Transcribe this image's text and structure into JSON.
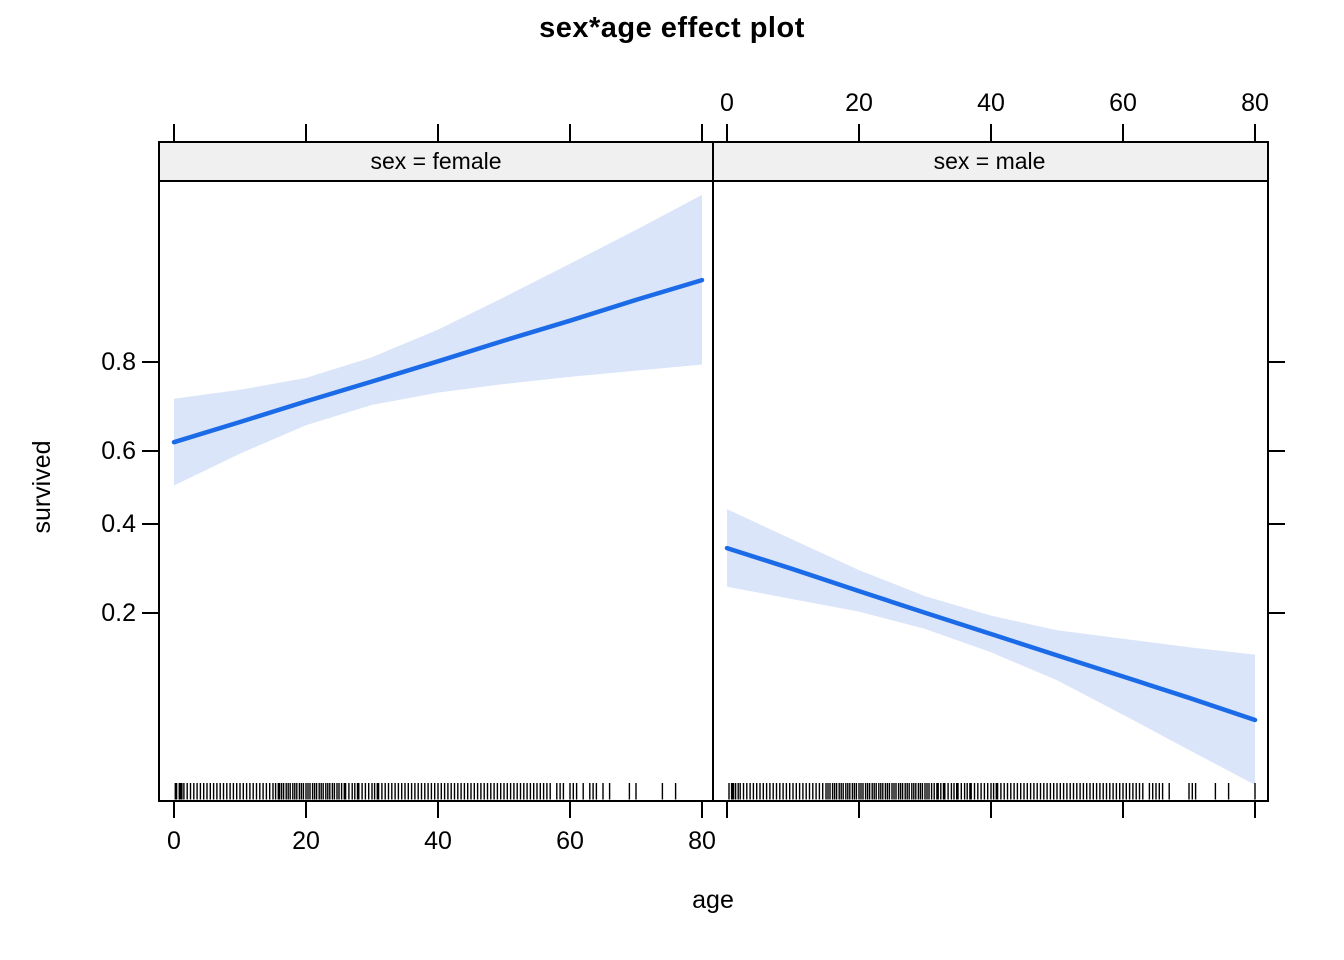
{
  "title": "sex*age effect plot",
  "chart_data": {
    "type": "line",
    "title": "sex*age effect plot",
    "xlabel": "age",
    "ylabel": "survived",
    "x_ticks": [
      0,
      20,
      40,
      60,
      80
    ],
    "y_ticks": [
      0.2,
      0.4,
      0.6,
      0.8
    ],
    "y_scale": "logit",
    "xlim": [
      -2.1,
      81.8
    ],
    "ylim": [
      0.03,
      0.97
    ],
    "grid": false,
    "legend": "none",
    "colors": {
      "line": "#1b6be8",
      "band": "#dbe5f9",
      "strip_bg": "#f0f0f0",
      "border": "#000000",
      "rug": "#000000"
    },
    "panels": [
      {
        "strip_label": "sex = female",
        "x_axis_labels": "bottom",
        "fit": {
          "ages": [
            0,
            10,
            20,
            30,
            40,
            50,
            60,
            70,
            80
          ],
          "probs": [
            0.622,
            0.673,
            0.721,
            0.763,
            0.801,
            0.835,
            0.863,
            0.888,
            0.908
          ]
        },
        "band": {
          "ages": [
            0,
            10,
            20,
            30,
            40,
            50,
            60,
            70,
            80
          ],
          "upper": [
            0.727,
            0.746,
            0.77,
            0.808,
            0.851,
            0.891,
            0.922,
            0.945,
            0.962
          ],
          "lower": [
            0.505,
            0.592,
            0.665,
            0.713,
            0.74,
            0.758,
            0.772,
            0.784,
            0.795
          ]
        },
        "rug_ages": [
          0.2,
          0.4,
          0.8,
          0.9,
          1,
          1.2,
          1.5,
          2,
          2.5,
          3,
          3.5,
          4,
          4.5,
          5,
          5.5,
          6,
          6.5,
          7,
          7.5,
          8,
          8.5,
          9,
          9.5,
          10,
          10.5,
          11,
          11.5,
          12,
          12.5,
          13,
          13.5,
          14,
          14.5,
          15,
          15.4,
          15.8,
          16,
          16.3,
          16.6,
          17,
          17.3,
          17.6,
          18,
          18.3,
          18.6,
          19,
          19.3,
          19.6,
          20,
          20.3,
          20.6,
          21,
          21.3,
          21.6,
          22,
          22.3,
          22.6,
          23,
          23.3,
          23.6,
          24,
          24.3,
          24.7,
          25,
          25.4,
          25.8,
          26,
          26.5,
          27,
          27.4,
          27.8,
          28,
          28.5,
          29,
          29.5,
          30,
          30.4,
          30.8,
          31,
          31.5,
          32,
          32.5,
          33,
          33.5,
          34,
          34.5,
          35,
          35.5,
          36,
          36.5,
          37,
          37.5,
          38,
          38.5,
          39,
          39.5,
          40,
          40.5,
          41,
          41.5,
          42,
          42.5,
          43,
          43.5,
          44,
          44.5,
          45,
          45.5,
          46,
          46.5,
          47,
          47.5,
          48,
          48.5,
          49,
          49.5,
          50,
          50.5,
          51,
          51.5,
          52,
          52.5,
          53,
          53.5,
          54,
          54.5,
          55,
          55.5,
          56,
          56.5,
          57,
          58,
          58.5,
          59,
          60,
          60.5,
          61,
          62,
          63,
          63.5,
          64,
          65,
          66,
          69,
          70,
          74,
          76
        ]
      },
      {
        "strip_label": "sex = male",
        "x_axis_labels": "top",
        "fit": {
          "ages": [
            0,
            10,
            20,
            30,
            40,
            50,
            60,
            70,
            80
          ],
          "probs": [
            0.338,
            0.288,
            0.241,
            0.2,
            0.165,
            0.135,
            0.11,
            0.089,
            0.071
          ]
        },
        "band": {
          "ages": [
            0,
            10,
            20,
            30,
            40,
            50,
            60,
            70,
            80
          ],
          "upper": [
            0.44,
            0.359,
            0.286,
            0.231,
            0.195,
            0.171,
            0.158,
            0.146,
            0.136
          ],
          "lower": [
            0.25,
            0.225,
            0.202,
            0.173,
            0.139,
            0.106,
            0.075,
            0.052,
            0.036
          ]
        },
        "rug_ages": [
          0.3,
          0.7,
          0.9,
          1,
          1.3,
          1.7,
          2,
          2.5,
          3,
          3.5,
          4,
          4.5,
          5,
          5.5,
          6,
          6.5,
          7,
          7.5,
          8,
          8.5,
          9,
          9.5,
          10,
          10.5,
          11,
          11.5,
          12,
          12.5,
          13,
          13.5,
          14,
          14.5,
          15,
          15.3,
          15.6,
          16,
          16.3,
          16.6,
          17,
          17.3,
          17.6,
          18,
          18.3,
          18.6,
          19,
          19.3,
          19.6,
          20,
          20.3,
          20.6,
          21,
          21.3,
          21.6,
          22,
          22.3,
          22.6,
          23,
          23.3,
          23.6,
          24,
          24.3,
          24.6,
          25,
          25.3,
          25.6,
          26,
          26.3,
          26.6,
          27,
          27.3,
          27.6,
          28,
          28.3,
          28.6,
          29,
          29.3,
          29.6,
          30,
          30.3,
          30.6,
          31,
          31.4,
          31.8,
          32,
          32.4,
          32.8,
          33,
          33.5,
          34,
          34.4,
          34.8,
          35,
          35.5,
          36,
          36.4,
          36.8,
          37,
          37.5,
          38,
          38.5,
          39,
          39.5,
          40,
          40.4,
          40.8,
          41,
          41.5,
          42,
          42.5,
          43,
          43.5,
          44,
          44.5,
          45,
          45.5,
          46,
          46.5,
          47,
          47.5,
          48,
          48.5,
          49,
          49.5,
          50,
          50.5,
          51,
          51.5,
          52,
          52.5,
          53,
          53.5,
          54,
          54.5,
          55,
          55.5,
          56,
          56.5,
          57,
          57.5,
          58,
          58.5,
          59,
          59.5,
          60,
          60.5,
          61,
          61.5,
          62,
          62.5,
          63,
          64,
          64.5,
          65,
          65.5,
          66,
          67,
          70,
          70.5,
          71,
          74,
          76,
          80
        ]
      }
    ]
  }
}
